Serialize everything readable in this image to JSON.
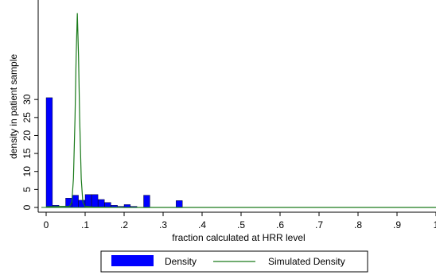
{
  "chart_data": {
    "type": "bar",
    "title": "",
    "xlabel": "fraction calculated at HRR level",
    "ylabel": "density in patient sample",
    "xlim": [
      0,
      1
    ],
    "ylim": [
      0,
      55
    ],
    "xticks": [
      0,
      0.1,
      0.2,
      0.3,
      0.4,
      0.5,
      0.6,
      0.7,
      0.8,
      0.9,
      1
    ],
    "xtick_labels": [
      "0",
      ".1",
      ".2",
      ".3",
      ".4",
      ".5",
      ".6",
      ".7",
      ".8",
      ".9",
      "1"
    ],
    "yticks": [
      0,
      5,
      10,
      15,
      20,
      25,
      30
    ],
    "ytick_labels": [
      "0",
      "5",
      "10",
      "15",
      "20",
      "25",
      "30"
    ],
    "grid": false,
    "legend_position": "bottom",
    "colors": {
      "density": "#0000ff",
      "simulated": "#1a7a1a",
      "axis": "#000000"
    },
    "series": [
      {
        "name": "Density",
        "type": "bar",
        "bin_width": 0.0167,
        "bins": [
          {
            "x": 0.0,
            "value": 30.5
          },
          {
            "x": 0.0167,
            "value": 0.6
          },
          {
            "x": 0.0333,
            "value": 0.3
          },
          {
            "x": 0.05,
            "value": 2.6
          },
          {
            "x": 0.0667,
            "value": 3.4
          },
          {
            "x": 0.0833,
            "value": 2.0
          },
          {
            "x": 0.1,
            "value": 3.6
          },
          {
            "x": 0.1167,
            "value": 3.6
          },
          {
            "x": 0.1333,
            "value": 2.2
          },
          {
            "x": 0.15,
            "value": 1.4
          },
          {
            "x": 0.1667,
            "value": 0.6
          },
          {
            "x": 0.1833,
            "value": 0.3
          },
          {
            "x": 0.2,
            "value": 0.8
          },
          {
            "x": 0.2167,
            "value": 0.3
          },
          {
            "x": 0.25,
            "value": 3.4
          },
          {
            "x": 0.3333,
            "value": 1.9
          }
        ]
      },
      {
        "name": "Simulated Density",
        "type": "line",
        "x": [
          0.0,
          0.06,
          0.066,
          0.07,
          0.074,
          0.077,
          0.08,
          0.083,
          0.086,
          0.09,
          0.094,
          0.1,
          0.12,
          0.2,
          0.3,
          0.4,
          0.5,
          0.6,
          0.7,
          0.8,
          0.9,
          1.0
        ],
        "y": [
          0.2,
          0.3,
          1.5,
          8.0,
          25.0,
          42.0,
          54.0,
          42.0,
          25.0,
          8.0,
          1.5,
          0.3,
          0.1,
          0.0,
          0.0,
          0.0,
          0.0,
          0.0,
          0.0,
          0.0,
          0.0,
          0.0
        ]
      }
    ]
  }
}
